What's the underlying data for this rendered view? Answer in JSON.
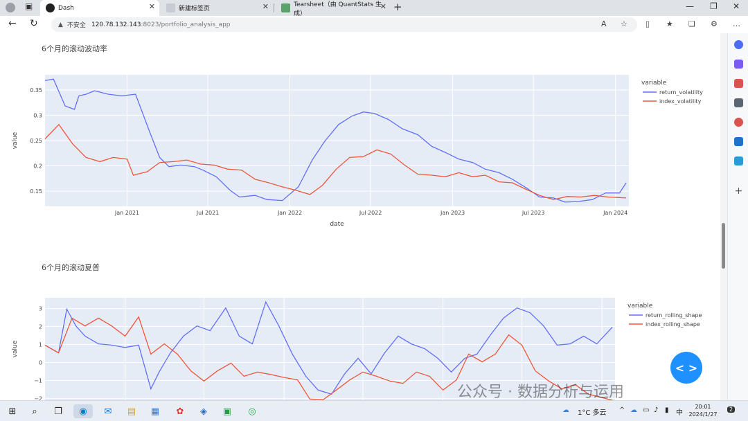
{
  "browser": {
    "tabs": [
      {
        "title": "Dash",
        "active": true
      },
      {
        "title": "新建标签页",
        "active": false
      },
      {
        "title": "Tearsheet（由 QuantStats 生成）",
        "active": false
      }
    ],
    "address": {
      "security_label": "不安全",
      "host": "120.78.132.143",
      "path": ":8023/portfolio_analysis_app"
    }
  },
  "charts": {
    "volatility": {
      "title": "6个月的滚动波动率",
      "legend_title": "variable",
      "xlabel": "date",
      "ylabel": "value",
      "xticks": [
        "Jan 2021",
        "Jul 2021",
        "Jan 2022",
        "Jul 2022",
        "Jan 2023",
        "Jul 2023",
        "Jan 2024"
      ],
      "yticks": [
        "0.15",
        "0.2",
        "0.25",
        "0.3",
        "0.35"
      ]
    },
    "sharpe": {
      "title": "6个月的滚动夏普",
      "legend_title": "variable",
      "ylabel": "value",
      "yticks": [
        "3",
        "2",
        "1",
        "0",
        "−1",
        "−2"
      ]
    }
  },
  "chart_data": [
    {
      "type": "line",
      "title": "6个月的滚动波动率",
      "xlabel": "date",
      "ylabel": "value",
      "xlim": [
        "2020-07-01",
        "2024-01-31"
      ],
      "ylim": [
        0.12,
        0.38
      ],
      "legend": "right",
      "grid": true,
      "series": [
        {
          "name": "return_volatility",
          "color": "#636efa",
          "x": [
            "2020-07-01",
            "2020-07-20",
            "2020-08-15",
            "2020-09-05",
            "2020-09-15",
            "2020-10-01",
            "2020-10-20",
            "2020-11-20",
            "2020-12-20",
            "2021-01-20",
            "2021-02-20",
            "2021-03-15",
            "2021-04-05",
            "2021-05-01",
            "2021-06-01",
            "2021-06-20",
            "2021-07-20",
            "2021-08-20",
            "2021-09-10",
            "2021-10-15",
            "2021-11-10",
            "2021-12-15",
            "2022-01-20",
            "2022-02-20",
            "2022-03-20",
            "2022-04-20",
            "2022-05-20",
            "2022-06-15",
            "2022-07-10",
            "2022-08-10",
            "2022-09-10",
            "2022-10-15",
            "2022-11-15",
            "2022-12-15",
            "2023-01-15",
            "2023-02-15",
            "2023-03-15",
            "2023-04-15",
            "2023-05-15",
            "2023-06-15",
            "2023-07-15",
            "2023-08-15",
            "2023-09-10",
            "2023-10-10",
            "2023-11-10",
            "2023-12-10",
            "2024-01-10",
            "2024-01-25"
          ],
          "y": [
            0.37,
            0.37,
            0.32,
            0.31,
            0.34,
            0.34,
            0.35,
            0.34,
            0.34,
            0.34,
            0.27,
            0.215,
            0.2,
            0.2,
            0.2,
            0.19,
            0.18,
            0.15,
            0.14,
            0.14,
            0.135,
            0.13,
            0.16,
            0.21,
            0.25,
            0.28,
            0.3,
            0.305,
            0.305,
            0.29,
            0.275,
            0.26,
            0.24,
            0.225,
            0.215,
            0.205,
            0.195,
            0.185,
            0.175,
            0.155,
            0.14,
            0.135,
            0.13,
            0.128,
            0.135,
            0.145,
            0.148,
            0.165
          ]
        },
        {
          "name": "index_volatility",
          "color": "#ef553b",
          "x": [
            "2020-07-01",
            "2020-08-01",
            "2020-09-01",
            "2020-10-01",
            "2020-11-01",
            "2020-12-01",
            "2021-01-01",
            "2021-01-15",
            "2021-02-15",
            "2021-03-15",
            "2021-04-15",
            "2021-05-15",
            "2021-06-15",
            "2021-07-15",
            "2021-08-15",
            "2021-09-15",
            "2021-10-15",
            "2021-11-15",
            "2021-12-15",
            "2022-01-15",
            "2022-02-15",
            "2022-03-15",
            "2022-04-15",
            "2022-05-15",
            "2022-06-15",
            "2022-07-15",
            "2022-08-15",
            "2022-09-15",
            "2022-10-15",
            "2022-11-15",
            "2022-12-15",
            "2023-01-15",
            "2023-02-15",
            "2023-03-15",
            "2023-04-15",
            "2023-05-15",
            "2023-06-15",
            "2023-07-15",
            "2023-08-15",
            "2023-09-15",
            "2023-10-15",
            "2023-11-15",
            "2023-12-15",
            "2024-01-25"
          ],
          "y": [
            0.255,
            0.28,
            0.245,
            0.215,
            0.21,
            0.215,
            0.215,
            0.18,
            0.19,
            0.205,
            0.21,
            0.21,
            0.205,
            0.2,
            0.195,
            0.19,
            0.175,
            0.165,
            0.16,
            0.15,
            0.145,
            0.16,
            0.195,
            0.215,
            0.22,
            0.23,
            0.225,
            0.2,
            0.185,
            0.18,
            0.18,
            0.185,
            0.18,
            0.18,
            0.17,
            0.165,
            0.155,
            0.14,
            0.135,
            0.138,
            0.14,
            0.14,
            0.14,
            0.135
          ]
        }
      ]
    },
    {
      "type": "line",
      "title": "6个月的滚动夏普",
      "ylabel": "value",
      "xlim": [
        "2020-07-01",
        "2024-01-31"
      ],
      "ylim": [
        -2.1,
        3.6
      ],
      "legend": "right",
      "grid": true,
      "series": [
        {
          "name": "return_rolling_shape",
          "color": "#636efa",
          "x": [
            "2020-07-01",
            "2020-08-01",
            "2020-08-20",
            "2020-09-10",
            "2020-10-01",
            "2020-11-01",
            "2020-12-01",
            "2021-01-01",
            "2021-02-01",
            "2021-03-01",
            "2021-03-20",
            "2021-04-15",
            "2021-05-15",
            "2021-06-15",
            "2021-07-15",
            "2021-08-20",
            "2021-09-20",
            "2021-10-20",
            "2021-11-20",
            "2021-12-20",
            "2022-01-20",
            "2022-02-20",
            "2022-03-20",
            "2022-04-20",
            "2022-05-20",
            "2022-06-20",
            "2022-07-20",
            "2022-08-20",
            "2022-09-20",
            "2022-10-20",
            "2022-11-20",
            "2022-12-20",
            "2023-01-20",
            "2023-02-20",
            "2023-03-20",
            "2023-04-20",
            "2023-05-20",
            "2023-06-20",
            "2023-07-20",
            "2023-08-20",
            "2023-09-20",
            "2023-10-20",
            "2023-11-20",
            "2023-12-20",
            "2024-01-25"
          ],
          "y": [
            1.0,
            0.5,
            3.0,
            2.0,
            1.5,
            1.0,
            1.0,
            0.8,
            1.0,
            -1.5,
            -0.5,
            0.5,
            1.5,
            2.0,
            1.8,
            3.0,
            1.5,
            1.0,
            3.4,
            2.0,
            0.5,
            -0.8,
            -1.5,
            -1.8,
            -0.6,
            0.2,
            -0.6,
            0.5,
            1.5,
            1.0,
            0.8,
            0.2,
            -0.5,
            0.2,
            0.5,
            1.5,
            2.5,
            3.0,
            2.8,
            2.0,
            1.0,
            1.0,
            1.5,
            1.0,
            2.0
          ]
        },
        {
          "name": "index_rolling_shape",
          "color": "#ef553b",
          "x": [
            "2020-07-01",
            "2020-08-01",
            "2020-09-01",
            "2020-10-01",
            "2020-11-01",
            "2020-12-01",
            "2021-01-01",
            "2021-02-01",
            "2021-03-01",
            "2021-04-01",
            "2021-05-01",
            "2021-06-01",
            "2021-07-01",
            "2021-08-01",
            "2021-09-01",
            "2021-10-01",
            "2021-11-01",
            "2021-12-01",
            "2022-01-01",
            "2022-02-01",
            "2022-03-01",
            "2022-04-01",
            "2022-05-01",
            "2022-06-01",
            "2022-07-01",
            "2022-08-01",
            "2022-09-01",
            "2022-10-01",
            "2022-11-01",
            "2022-12-01",
            "2023-01-01",
            "2023-02-01",
            "2023-03-01",
            "2023-04-01",
            "2023-05-01",
            "2023-06-01",
            "2023-07-01",
            "2023-08-01",
            "2023-09-01",
            "2023-10-01",
            "2023-11-01",
            "2023-12-01",
            "2024-01-25"
          ],
          "y": [
            1.0,
            0.5,
            2.5,
            2.0,
            2.5,
            2.0,
            1.5,
            2.5,
            0.5,
            1.0,
            0.5,
            -0.5,
            -1.0,
            -0.5,
            0.0,
            -0.8,
            -0.5,
            -0.7,
            -0.8,
            -1.0,
            -2.0,
            -2.1,
            -1.5,
            -1.0,
            -0.5,
            -0.8,
            -1.0,
            -1.2,
            -0.5,
            -0.8,
            -1.5,
            -1.0,
            0.5,
            0.0,
            0.5,
            1.5,
            1.0,
            -0.5,
            -1.0,
            -1.5,
            -1.2,
            -1.8,
            -2.1
          ]
        }
      ]
    }
  ],
  "sidebar": {
    "icons": [
      "search-icon",
      "tag-icon",
      "toolbox-icon",
      "chess-icon",
      "office-icon",
      "outlook-icon",
      "drop-icon",
      "add-icon"
    ]
  },
  "floating_button": {
    "label": "< >"
  },
  "watermark": "公众号 · 数据分析与运用",
  "taskbar": {
    "weather": "1°C 多云",
    "ime": "中",
    "time": "20:01",
    "date": "2024/1/27",
    "notifications": "2"
  }
}
